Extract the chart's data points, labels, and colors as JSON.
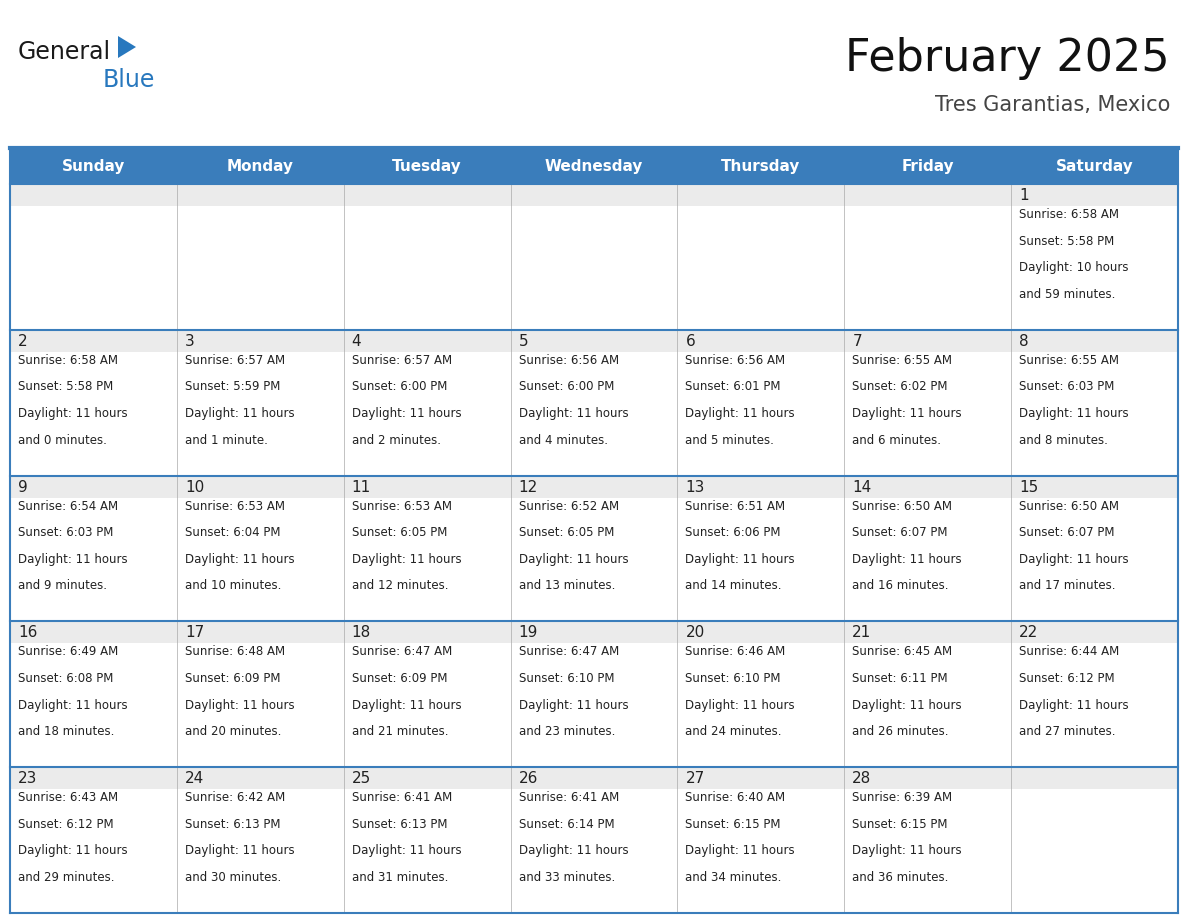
{
  "title": "February 2025",
  "subtitle": "Tres Garantias, Mexico",
  "header_bg_color": "#3A7DBB",
  "header_text_color": "#FFFFFF",
  "cell_bg_color": "#EBEBEB",
  "border_color": "#3A7DBB",
  "text_color": "#222222",
  "days_of_week": [
    "Sunday",
    "Monday",
    "Tuesday",
    "Wednesday",
    "Thursday",
    "Friday",
    "Saturday"
  ],
  "weeks": [
    [
      {
        "day": null,
        "sunrise": null,
        "sunset": null,
        "daylight": null
      },
      {
        "day": null,
        "sunrise": null,
        "sunset": null,
        "daylight": null
      },
      {
        "day": null,
        "sunrise": null,
        "sunset": null,
        "daylight": null
      },
      {
        "day": null,
        "sunrise": null,
        "sunset": null,
        "daylight": null
      },
      {
        "day": null,
        "sunrise": null,
        "sunset": null,
        "daylight": null
      },
      {
        "day": null,
        "sunrise": null,
        "sunset": null,
        "daylight": null
      },
      {
        "day": 1,
        "sunrise": "6:58 AM",
        "sunset": "5:58 PM",
        "daylight": "10 hours\nand 59 minutes."
      }
    ],
    [
      {
        "day": 2,
        "sunrise": "6:58 AM",
        "sunset": "5:58 PM",
        "daylight": "11 hours\nand 0 minutes."
      },
      {
        "day": 3,
        "sunrise": "6:57 AM",
        "sunset": "5:59 PM",
        "daylight": "11 hours\nand 1 minute."
      },
      {
        "day": 4,
        "sunrise": "6:57 AM",
        "sunset": "6:00 PM",
        "daylight": "11 hours\nand 2 minutes."
      },
      {
        "day": 5,
        "sunrise": "6:56 AM",
        "sunset": "6:00 PM",
        "daylight": "11 hours\nand 4 minutes."
      },
      {
        "day": 6,
        "sunrise": "6:56 AM",
        "sunset": "6:01 PM",
        "daylight": "11 hours\nand 5 minutes."
      },
      {
        "day": 7,
        "sunrise": "6:55 AM",
        "sunset": "6:02 PM",
        "daylight": "11 hours\nand 6 minutes."
      },
      {
        "day": 8,
        "sunrise": "6:55 AM",
        "sunset": "6:03 PM",
        "daylight": "11 hours\nand 8 minutes."
      }
    ],
    [
      {
        "day": 9,
        "sunrise": "6:54 AM",
        "sunset": "6:03 PM",
        "daylight": "11 hours\nand 9 minutes."
      },
      {
        "day": 10,
        "sunrise": "6:53 AM",
        "sunset": "6:04 PM",
        "daylight": "11 hours\nand 10 minutes."
      },
      {
        "day": 11,
        "sunrise": "6:53 AM",
        "sunset": "6:05 PM",
        "daylight": "11 hours\nand 12 minutes."
      },
      {
        "day": 12,
        "sunrise": "6:52 AM",
        "sunset": "6:05 PM",
        "daylight": "11 hours\nand 13 minutes."
      },
      {
        "day": 13,
        "sunrise": "6:51 AM",
        "sunset": "6:06 PM",
        "daylight": "11 hours\nand 14 minutes."
      },
      {
        "day": 14,
        "sunrise": "6:50 AM",
        "sunset": "6:07 PM",
        "daylight": "11 hours\nand 16 minutes."
      },
      {
        "day": 15,
        "sunrise": "6:50 AM",
        "sunset": "6:07 PM",
        "daylight": "11 hours\nand 17 minutes."
      }
    ],
    [
      {
        "day": 16,
        "sunrise": "6:49 AM",
        "sunset": "6:08 PM",
        "daylight": "11 hours\nand 18 minutes."
      },
      {
        "day": 17,
        "sunrise": "6:48 AM",
        "sunset": "6:09 PM",
        "daylight": "11 hours\nand 20 minutes."
      },
      {
        "day": 18,
        "sunrise": "6:47 AM",
        "sunset": "6:09 PM",
        "daylight": "11 hours\nand 21 minutes."
      },
      {
        "day": 19,
        "sunrise": "6:47 AM",
        "sunset": "6:10 PM",
        "daylight": "11 hours\nand 23 minutes."
      },
      {
        "day": 20,
        "sunrise": "6:46 AM",
        "sunset": "6:10 PM",
        "daylight": "11 hours\nand 24 minutes."
      },
      {
        "day": 21,
        "sunrise": "6:45 AM",
        "sunset": "6:11 PM",
        "daylight": "11 hours\nand 26 minutes."
      },
      {
        "day": 22,
        "sunrise": "6:44 AM",
        "sunset": "6:12 PM",
        "daylight": "11 hours\nand 27 minutes."
      }
    ],
    [
      {
        "day": 23,
        "sunrise": "6:43 AM",
        "sunset": "6:12 PM",
        "daylight": "11 hours\nand 29 minutes."
      },
      {
        "day": 24,
        "sunrise": "6:42 AM",
        "sunset": "6:13 PM",
        "daylight": "11 hours\nand 30 minutes."
      },
      {
        "day": 25,
        "sunrise": "6:41 AM",
        "sunset": "6:13 PM",
        "daylight": "11 hours\nand 31 minutes."
      },
      {
        "day": 26,
        "sunrise": "6:41 AM",
        "sunset": "6:14 PM",
        "daylight": "11 hours\nand 33 minutes."
      },
      {
        "day": 27,
        "sunrise": "6:40 AM",
        "sunset": "6:15 PM",
        "daylight": "11 hours\nand 34 minutes."
      },
      {
        "day": 28,
        "sunrise": "6:39 AM",
        "sunset": "6:15 PM",
        "daylight": "11 hours\nand 36 minutes."
      },
      {
        "day": null,
        "sunrise": null,
        "sunset": null,
        "daylight": null
      }
    ]
  ],
  "logo_general_color": "#1a1a1a",
  "logo_blue_color": "#2878BE",
  "logo_triangle_color": "#2878BE"
}
